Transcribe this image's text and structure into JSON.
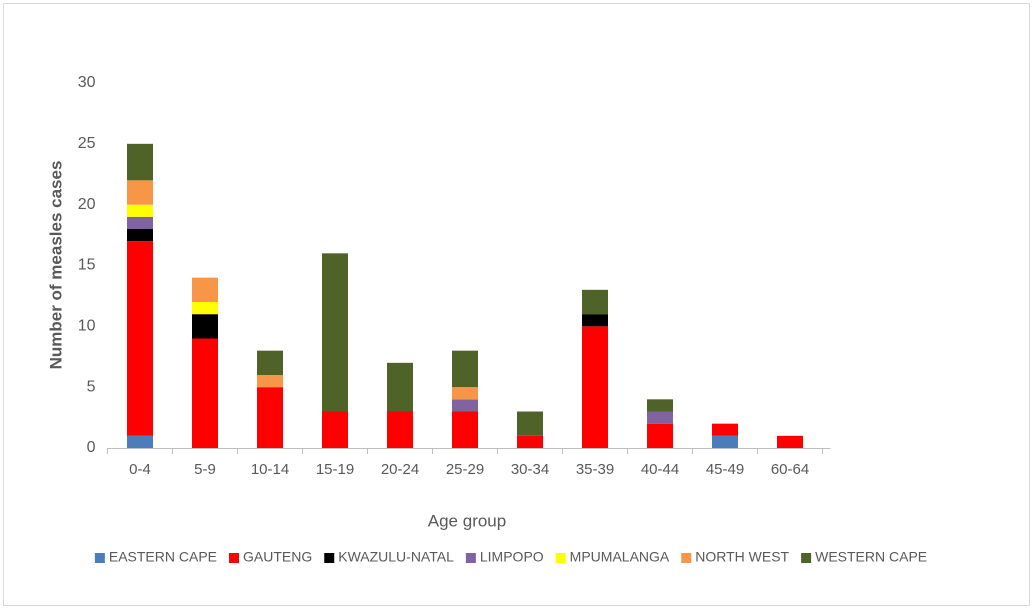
{
  "chart_data": {
    "type": "stacked_bar",
    "y_label": "Number of measles cases",
    "x_label": "Age group",
    "categories": [
      "0-4",
      "5-9",
      "10-14",
      "15-19",
      "20-24",
      "25-29",
      "30-34",
      "35-39",
      "40-44",
      "45-49",
      "60-64"
    ],
    "series": [
      {
        "name": "EASTERN CAPE",
        "color": "#4a7ebb",
        "values": [
          1,
          0,
          0,
          0,
          0,
          0,
          0,
          0,
          0,
          1,
          0
        ]
      },
      {
        "name": "GAUTENG",
        "color": "#ff0000",
        "values": [
          16,
          9,
          5,
          3,
          3,
          3,
          1,
          10,
          2,
          1,
          1
        ]
      },
      {
        "name": "KWAZULU-NATAL",
        "color": "#000000",
        "values": [
          1,
          2,
          0,
          0,
          0,
          0,
          0,
          1,
          0,
          0,
          0
        ]
      },
      {
        "name": "LIMPOPO",
        "color": "#8064a2",
        "values": [
          1,
          0,
          0,
          0,
          0,
          1,
          0,
          0,
          1,
          0,
          0
        ]
      },
      {
        "name": "MPUMALANGA",
        "color": "#ffff00",
        "values": [
          1,
          1,
          0,
          0,
          0,
          0,
          0,
          0,
          0,
          0,
          0
        ]
      },
      {
        "name": "NORTH WEST",
        "color": "#f79646",
        "values": [
          2,
          2,
          1,
          0,
          0,
          1,
          0,
          0,
          0,
          0,
          0
        ]
      },
      {
        "name": "WESTERN CAPE",
        "color": "#4f6228",
        "values": [
          3,
          0,
          2,
          13,
          4,
          3,
          2,
          2,
          1,
          0,
          0
        ]
      }
    ],
    "ylim": [
      0,
      30
    ],
    "yticks": [
      0,
      5,
      10,
      15,
      20,
      25,
      30
    ],
    "grid": false,
    "legend": "bottom"
  }
}
